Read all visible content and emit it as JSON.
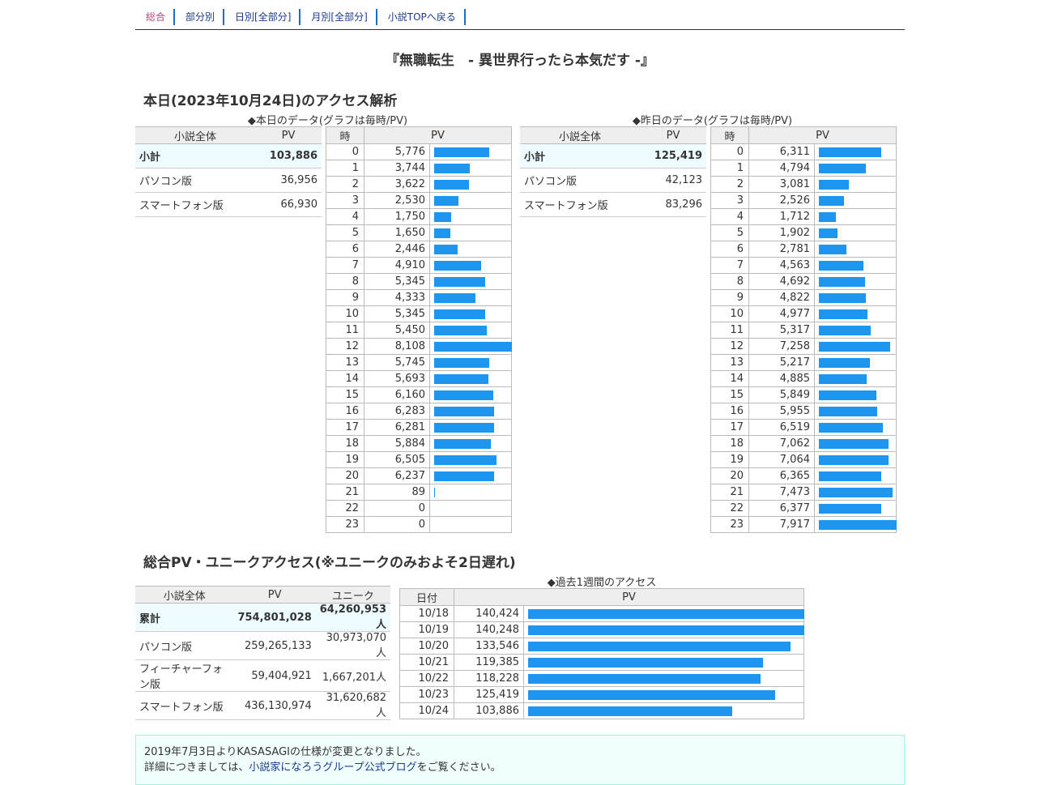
{
  "nav": {
    "tabs": [
      "総合",
      "部分別",
      "日別[全部分]",
      "月別[全部分]",
      "小説TOPへ戻る"
    ]
  },
  "novel_title": "『無職転生　- 異世界行ったら本気だす -』",
  "today_section": {
    "heading": "本日(2023年10月24日)のアクセス解析",
    "today_caption": "◆本日のデータ(グラフは毎時/PV)",
    "yesterday_caption": "◆昨日のデータ(グラフは毎時/PV)",
    "summary_headers": [
      "小説全体",
      "PV"
    ],
    "hourly_headers": [
      "時",
      "PV"
    ],
    "today_summary": [
      {
        "label": "小計",
        "value": "103,886"
      },
      {
        "label": "パソコン版",
        "value": "36,956"
      },
      {
        "label": "スマートフォン版",
        "value": "66,930"
      }
    ],
    "yesterday_summary": [
      {
        "label": "小計",
        "value": "125,419"
      },
      {
        "label": "パソコン版",
        "value": "42,123"
      },
      {
        "label": "スマートフォン版",
        "value": "83,296"
      }
    ],
    "today_hourly": [
      {
        "hour": "0",
        "pv": "5,776",
        "n": 5776
      },
      {
        "hour": "1",
        "pv": "3,744",
        "n": 3744
      },
      {
        "hour": "2",
        "pv": "3,622",
        "n": 3622
      },
      {
        "hour": "3",
        "pv": "2,530",
        "n": 2530
      },
      {
        "hour": "4",
        "pv": "1,750",
        "n": 1750
      },
      {
        "hour": "5",
        "pv": "1,650",
        "n": 1650
      },
      {
        "hour": "6",
        "pv": "2,446",
        "n": 2446
      },
      {
        "hour": "7",
        "pv": "4,910",
        "n": 4910
      },
      {
        "hour": "8",
        "pv": "5,345",
        "n": 5345
      },
      {
        "hour": "9",
        "pv": "4,333",
        "n": 4333
      },
      {
        "hour": "10",
        "pv": "5,345",
        "n": 5345
      },
      {
        "hour": "11",
        "pv": "5,450",
        "n": 5450
      },
      {
        "hour": "12",
        "pv": "8,108",
        "n": 8108
      },
      {
        "hour": "13",
        "pv": "5,745",
        "n": 5745
      },
      {
        "hour": "14",
        "pv": "5,693",
        "n": 5693
      },
      {
        "hour": "15",
        "pv": "6,160",
        "n": 6160
      },
      {
        "hour": "16",
        "pv": "6,283",
        "n": 6283
      },
      {
        "hour": "17",
        "pv": "6,281",
        "n": 6281
      },
      {
        "hour": "18",
        "pv": "5,884",
        "n": 5884
      },
      {
        "hour": "19",
        "pv": "6,505",
        "n": 6505
      },
      {
        "hour": "20",
        "pv": "6,237",
        "n": 6237
      },
      {
        "hour": "21",
        "pv": "89",
        "n": 89
      },
      {
        "hour": "22",
        "pv": "0",
        "n": 0
      },
      {
        "hour": "23",
        "pv": "0",
        "n": 0
      }
    ],
    "yesterday_hourly": [
      {
        "hour": "0",
        "pv": "6,311",
        "n": 6311
      },
      {
        "hour": "1",
        "pv": "4,794",
        "n": 4794
      },
      {
        "hour": "2",
        "pv": "3,081",
        "n": 3081
      },
      {
        "hour": "3",
        "pv": "2,526",
        "n": 2526
      },
      {
        "hour": "4",
        "pv": "1,712",
        "n": 1712
      },
      {
        "hour": "5",
        "pv": "1,902",
        "n": 1902
      },
      {
        "hour": "6",
        "pv": "2,781",
        "n": 2781
      },
      {
        "hour": "7",
        "pv": "4,563",
        "n": 4563
      },
      {
        "hour": "8",
        "pv": "4,692",
        "n": 4692
      },
      {
        "hour": "9",
        "pv": "4,822",
        "n": 4822
      },
      {
        "hour": "10",
        "pv": "4,977",
        "n": 4977
      },
      {
        "hour": "11",
        "pv": "5,317",
        "n": 5317
      },
      {
        "hour": "12",
        "pv": "7,258",
        "n": 7258
      },
      {
        "hour": "13",
        "pv": "5,217",
        "n": 5217
      },
      {
        "hour": "14",
        "pv": "4,885",
        "n": 4885
      },
      {
        "hour": "15",
        "pv": "5,849",
        "n": 5849
      },
      {
        "hour": "16",
        "pv": "5,955",
        "n": 5955
      },
      {
        "hour": "17",
        "pv": "6,519",
        "n": 6519
      },
      {
        "hour": "18",
        "pv": "7,062",
        "n": 7062
      },
      {
        "hour": "19",
        "pv": "7,064",
        "n": 7064
      },
      {
        "hour": "20",
        "pv": "6,365",
        "n": 6365
      },
      {
        "hour": "21",
        "pv": "7,473",
        "n": 7473
      },
      {
        "hour": "22",
        "pv": "6,377",
        "n": 6377
      },
      {
        "hour": "23",
        "pv": "7,917",
        "n": 7917
      }
    ]
  },
  "total_section": {
    "heading": "総合PV・ユニークアクセス(※ユニークのみおよそ2日遅れ)",
    "week_caption": "◆過去1週間のアクセス",
    "total_headers": [
      "小説全体",
      "PV",
      "ユニーク"
    ],
    "totals": [
      {
        "label": "累計",
        "pv": "754,801,028",
        "unique": "64,260,953人"
      },
      {
        "label": "パソコン版",
        "pv": "259,265,133",
        "unique": "30,973,070人"
      },
      {
        "label": "フィーチャーフォン版",
        "pv": "59,404,921",
        "unique": "1,667,201人"
      },
      {
        "label": "スマートフォン版",
        "pv": "436,130,974",
        "unique": "31,620,682人"
      }
    ],
    "week_headers": [
      "日付",
      "PV"
    ],
    "week": [
      {
        "date": "10/18",
        "pv": "140,424",
        "n": 140424
      },
      {
        "date": "10/19",
        "pv": "140,248",
        "n": 140248
      },
      {
        "date": "10/20",
        "pv": "133,546",
        "n": 133546
      },
      {
        "date": "10/21",
        "pv": "119,385",
        "n": 119385
      },
      {
        "date": "10/22",
        "pv": "118,228",
        "n": 118228
      },
      {
        "date": "10/23",
        "pv": "125,419",
        "n": 125419
      },
      {
        "date": "10/24",
        "pv": "103,886",
        "n": 103886
      }
    ]
  },
  "notice": {
    "line1": "2019年7月3日よりKASASAGIの仕様が変更となりました。",
    "line2_prefix": "詳細につきましては、",
    "line2_link": "小説家になろうグループ公式ブログ",
    "line2_suffix": "をご覧ください。"
  },
  "colors": {
    "bar": "#1e96f0",
    "subtotal_bg": "#eefcff",
    "nav_accent": "#1a6fc7"
  }
}
